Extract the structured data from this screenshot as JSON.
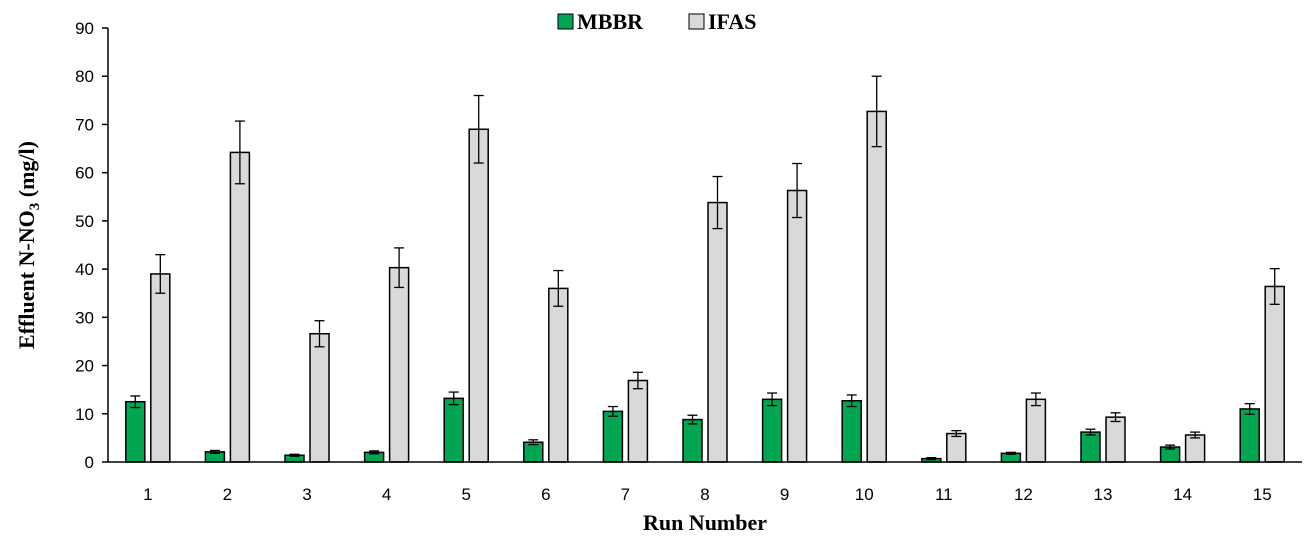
{
  "chart_data": {
    "type": "bar",
    "title": "",
    "xlabel": "Run Number",
    "ylabel": {
      "prefix": "Effluent N-NO",
      "subscript": "3",
      "suffix": " (mg/l)"
    },
    "ylim": [
      0,
      90
    ],
    "yticks": [
      0,
      10,
      20,
      30,
      40,
      50,
      60,
      70,
      80,
      90
    ],
    "grid": false,
    "legend_position": "top-center",
    "categories": [
      "1",
      "2",
      "3",
      "4",
      "5",
      "6",
      "7",
      "8",
      "9",
      "10",
      "11",
      "12",
      "13",
      "14",
      "15"
    ],
    "series": [
      {
        "name": "MBBR",
        "color": "#00a651",
        "values": [
          12.5,
          2.1,
          1.4,
          2.0,
          13.2,
          4.1,
          10.5,
          8.8,
          13.0,
          12.7,
          0.7,
          1.8,
          6.2,
          3.1,
          11.0
        ],
        "errors": [
          1.2,
          0.3,
          0.2,
          0.3,
          1.3,
          0.5,
          1.0,
          0.9,
          1.3,
          1.2,
          0.2,
          0.2,
          0.6,
          0.4,
          1.1
        ]
      },
      {
        "name": "IFAS",
        "color": "#d9d9d9",
        "values": [
          39.0,
          64.2,
          26.6,
          40.3,
          69.0,
          36.0,
          16.9,
          53.8,
          56.3,
          72.7,
          5.9,
          13.0,
          9.3,
          5.6,
          36.4
        ],
        "errors": [
          4.0,
          6.5,
          2.7,
          4.1,
          7.0,
          3.7,
          1.7,
          5.4,
          5.6,
          7.3,
          0.6,
          1.3,
          0.9,
          0.6,
          3.7
        ]
      }
    ]
  }
}
